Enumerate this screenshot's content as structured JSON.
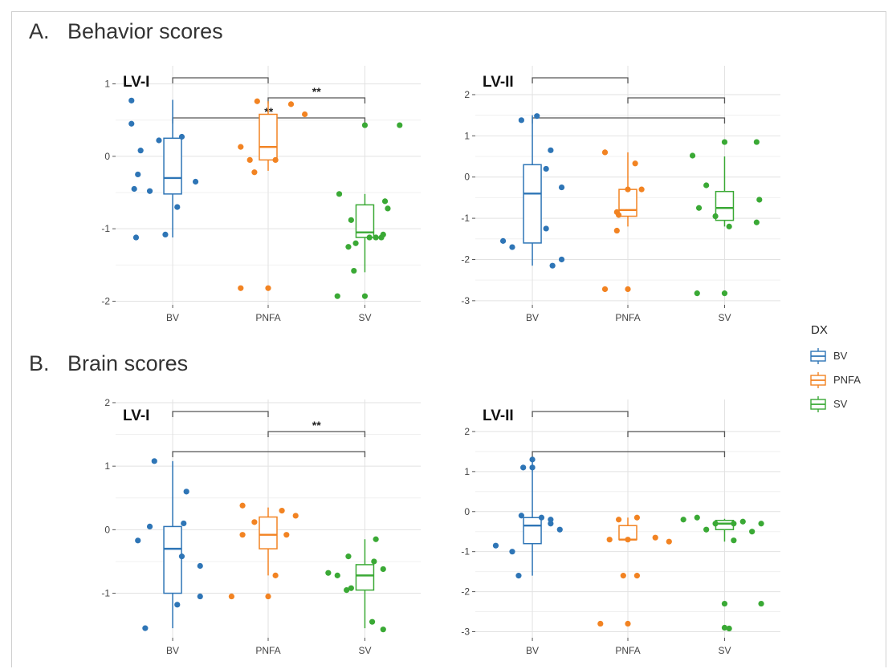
{
  "sections": [
    {
      "label": "A.",
      "title": "Behavior scores"
    },
    {
      "label": "B.",
      "title": "Brain scores"
    }
  ],
  "legend": {
    "title": "DX",
    "entries": [
      {
        "label": "BV",
        "color": "#2e75b6"
      },
      {
        "label": "PNFA",
        "color": "#f28322"
      },
      {
        "label": "SV",
        "color": "#3aa935"
      }
    ]
  },
  "chart_data": [
    {
      "type": "box",
      "section": "A",
      "panel_label": "LV-I",
      "categories": [
        "BV",
        "PNFA",
        "SV"
      ],
      "ylim": [
        -2.05,
        1.25
      ],
      "yticks": [
        -2,
        -1,
        0,
        1
      ],
      "grid": true,
      "series": [
        {
          "name": "BV",
          "box": {
            "min": -1.12,
            "q1": -0.52,
            "median": -0.3,
            "q3": 0.25,
            "max": 0.78
          },
          "points": [
            [
              -0.45,
              0.77
            ],
            [
              -0.45,
              0.45
            ],
            [
              -0.35,
              0.08
            ],
            [
              -0.38,
              -0.25
            ],
            [
              -0.42,
              -0.45
            ],
            [
              -0.25,
              -0.48
            ],
            [
              -0.15,
              0.22
            ],
            [
              0.1,
              0.27
            ],
            [
              0.05,
              -0.7
            ],
            [
              0.25,
              -0.35
            ],
            [
              -0.4,
              -1.12
            ],
            [
              -0.08,
              -1.08
            ]
          ]
        },
        {
          "name": "PNFA",
          "box": {
            "min": -0.2,
            "q1": -0.05,
            "median": 0.13,
            "q3": 0.58,
            "max": 0.76
          },
          "points": [
            [
              -0.3,
              0.13
            ],
            [
              -0.2,
              -0.05
            ],
            [
              -0.15,
              -0.22
            ],
            [
              0.08,
              -0.05
            ],
            [
              -0.12,
              0.76
            ],
            [
              0.25,
              0.72
            ],
            [
              0.4,
              0.58
            ],
            [
              -0.3,
              -1.82
            ],
            [
              0.0,
              -1.82
            ]
          ]
        },
        {
          "name": "SV",
          "box": {
            "min": -1.6,
            "q1": -1.12,
            "median": -1.05,
            "q3": -0.67,
            "max": -0.52
          },
          "points": [
            [
              0.0,
              0.43
            ],
            [
              0.38,
              0.43
            ],
            [
              -0.28,
              -0.52
            ],
            [
              -0.15,
              -0.88
            ],
            [
              -0.1,
              -1.2
            ],
            [
              -0.18,
              -1.25
            ],
            [
              0.22,
              -0.62
            ],
            [
              0.25,
              -0.72
            ],
            [
              0.18,
              -1.12
            ],
            [
              0.12,
              -1.12
            ],
            [
              0.05,
              -1.12
            ],
            [
              0.2,
              -1.08
            ],
            [
              -0.12,
              -1.58
            ],
            [
              -0.3,
              -1.93
            ],
            [
              0.0,
              -1.93
            ]
          ]
        }
      ],
      "significance": [
        {
          "from": "BV",
          "to": "PNFA",
          "label": ""
        },
        {
          "from": "PNFA",
          "to": "SV",
          "label": "**"
        },
        {
          "from": "BV",
          "to": "SV",
          "label": "**"
        }
      ]
    },
    {
      "type": "box",
      "section": "A",
      "panel_label": "LV-II",
      "categories": [
        "BV",
        "PNFA",
        "SV"
      ],
      "ylim": [
        -3.1,
        2.7
      ],
      "yticks": [
        -3,
        -2,
        -1,
        0,
        1,
        2
      ],
      "grid": true,
      "series": [
        {
          "name": "BV",
          "box": {
            "min": -2.15,
            "q1": -1.6,
            "median": -0.4,
            "q3": 0.3,
            "max": 1.5
          },
          "points": [
            [
              -0.12,
              1.38
            ],
            [
              0.05,
              1.48
            ],
            [
              0.2,
              0.65
            ],
            [
              0.15,
              0.2
            ],
            [
              0.32,
              -0.25
            ],
            [
              0.15,
              -1.25
            ],
            [
              -0.32,
              -1.55
            ],
            [
              -0.22,
              -1.7
            ],
            [
              0.32,
              -2.0
            ],
            [
              0.22,
              -2.15
            ]
          ]
        },
        {
          "name": "PNFA",
          "box": {
            "min": -1.2,
            "q1": -0.95,
            "median": -0.8,
            "q3": -0.3,
            "max": 0.6
          },
          "points": [
            [
              -0.25,
              0.6
            ],
            [
              0.08,
              0.33
            ],
            [
              -0.12,
              -0.85
            ],
            [
              -0.1,
              -0.92
            ],
            [
              0.0,
              -0.3
            ],
            [
              0.15,
              -0.3
            ],
            [
              -0.12,
              -1.3
            ],
            [
              -0.25,
              -2.72
            ],
            [
              0.0,
              -2.72
            ]
          ]
        },
        {
          "name": "SV",
          "box": {
            "min": -1.2,
            "q1": -1.05,
            "median": -0.75,
            "q3": -0.35,
            "max": 0.5
          },
          "points": [
            [
              0.0,
              0.85
            ],
            [
              0.35,
              0.85
            ],
            [
              -0.35,
              0.52
            ],
            [
              -0.2,
              -0.2
            ],
            [
              -0.28,
              -0.75
            ],
            [
              -0.1,
              -0.95
            ],
            [
              0.05,
              -1.2
            ],
            [
              0.38,
              -0.55
            ],
            [
              0.35,
              -1.1
            ],
            [
              -0.3,
              -2.82
            ],
            [
              0.0,
              -2.82
            ]
          ]
        }
      ],
      "significance": [
        {
          "from": "BV",
          "to": "PNFA",
          "label": ""
        },
        {
          "from": "PNFA",
          "to": "SV",
          "label": ""
        },
        {
          "from": "BV",
          "to": "SV",
          "label": ""
        }
      ]
    },
    {
      "type": "box",
      "section": "B",
      "panel_label": "LV-I",
      "categories": [
        "BV",
        "PNFA",
        "SV"
      ],
      "ylim": [
        -1.7,
        2.05
      ],
      "yticks": [
        -1,
        0,
        1,
        2
      ],
      "grid": true,
      "series": [
        {
          "name": "BV",
          "box": {
            "min": -1.55,
            "q1": -1.0,
            "median": -0.3,
            "q3": 0.05,
            "max": 1.08
          },
          "points": [
            [
              -0.2,
              1.08
            ],
            [
              -0.25,
              0.05
            ],
            [
              -0.38,
              -0.17
            ],
            [
              0.15,
              0.6
            ],
            [
              0.12,
              0.1
            ],
            [
              0.1,
              -0.42
            ],
            [
              0.3,
              -0.57
            ],
            [
              0.05,
              -1.18
            ],
            [
              0.3,
              -1.05
            ],
            [
              -0.3,
              -1.55
            ]
          ]
        },
        {
          "name": "PNFA",
          "box": {
            "min": -0.72,
            "q1": -0.3,
            "median": -0.08,
            "q3": 0.2,
            "max": 0.35
          },
          "points": [
            [
              -0.28,
              0.38
            ],
            [
              -0.15,
              0.12
            ],
            [
              0.15,
              0.3
            ],
            [
              0.3,
              0.22
            ],
            [
              -0.28,
              -0.08
            ],
            [
              0.2,
              -0.08
            ],
            [
              0.08,
              -0.72
            ],
            [
              -0.4,
              -1.05
            ],
            [
              0.0,
              -1.05
            ]
          ]
        },
        {
          "name": "SV",
          "box": {
            "min": -1.55,
            "q1": -0.95,
            "median": -0.72,
            "q3": -0.55,
            "max": -0.15
          },
          "points": [
            [
              0.12,
              -0.15
            ],
            [
              -0.18,
              -0.42
            ],
            [
              0.2,
              -0.62
            ],
            [
              -0.4,
              -0.68
            ],
            [
              -0.3,
              -0.72
            ],
            [
              -0.15,
              -0.92
            ],
            [
              -0.2,
              -0.95
            ],
            [
              0.1,
              -0.5
            ],
            [
              0.08,
              -1.45
            ],
            [
              0.2,
              -1.57
            ]
          ]
        }
      ],
      "significance": [
        {
          "from": "BV",
          "to": "PNFA",
          "label": ""
        },
        {
          "from": "PNFA",
          "to": "SV",
          "label": "**"
        },
        {
          "from": "BV",
          "to": "SV",
          "label": ""
        }
      ]
    },
    {
      "type": "box",
      "section": "B",
      "panel_label": "LV-II",
      "categories": [
        "BV",
        "PNFA",
        "SV"
      ],
      "ylim": [
        -3.15,
        2.8
      ],
      "yticks": [
        -3,
        -2,
        -1,
        0,
        1,
        2
      ],
      "grid": true,
      "series": [
        {
          "name": "BV",
          "box": {
            "min": -1.6,
            "q1": -0.8,
            "median": -0.35,
            "q3": -0.15,
            "max": 1.3
          },
          "points": [
            [
              -0.1,
              1.1
            ],
            [
              0.0,
              1.3
            ],
            [
              0.0,
              1.1
            ],
            [
              -0.12,
              -0.1
            ],
            [
              0.1,
              -0.15
            ],
            [
              0.2,
              -0.2
            ],
            [
              0.2,
              -0.3
            ],
            [
              0.3,
              -0.45
            ],
            [
              -0.4,
              -0.85
            ],
            [
              -0.22,
              -1.0
            ],
            [
              -0.15,
              -1.6
            ]
          ]
        },
        {
          "name": "PNFA",
          "box": {
            "min": -0.72,
            "q1": -0.7,
            "median": -0.7,
            "q3": -0.35,
            "max": -0.15
          },
          "points": [
            [
              -0.1,
              -0.2
            ],
            [
              0.1,
              -0.15
            ],
            [
              -0.2,
              -0.7
            ],
            [
              0.0,
              -0.7
            ],
            [
              0.3,
              -0.65
            ],
            [
              0.45,
              -0.75
            ],
            [
              -0.05,
              -1.6
            ],
            [
              0.1,
              -1.6
            ],
            [
              -0.3,
              -2.8
            ],
            [
              0.0,
              -2.8
            ]
          ]
        },
        {
          "name": "SV",
          "box": {
            "min": -0.75,
            "q1": -0.45,
            "median": -0.3,
            "q3": -0.22,
            "max": -0.18
          },
          "points": [
            [
              -0.45,
              -0.2
            ],
            [
              -0.3,
              -0.15
            ],
            [
              -0.1,
              -0.3
            ],
            [
              0.1,
              -0.3
            ],
            [
              0.2,
              -0.25
            ],
            [
              0.4,
              -0.3
            ],
            [
              -0.2,
              -0.45
            ],
            [
              0.3,
              -0.5
            ],
            [
              0.1,
              -0.72
            ],
            [
              0.0,
              -2.3
            ],
            [
              0.4,
              -2.3
            ],
            [
              0.0,
              -2.9
            ],
            [
              0.05,
              -2.92
            ]
          ]
        }
      ],
      "significance": [
        {
          "from": "BV",
          "to": "PNFA",
          "label": ""
        },
        {
          "from": "PNFA",
          "to": "SV",
          "label": ""
        },
        {
          "from": "BV",
          "to": "SV",
          "label": ""
        }
      ]
    }
  ]
}
